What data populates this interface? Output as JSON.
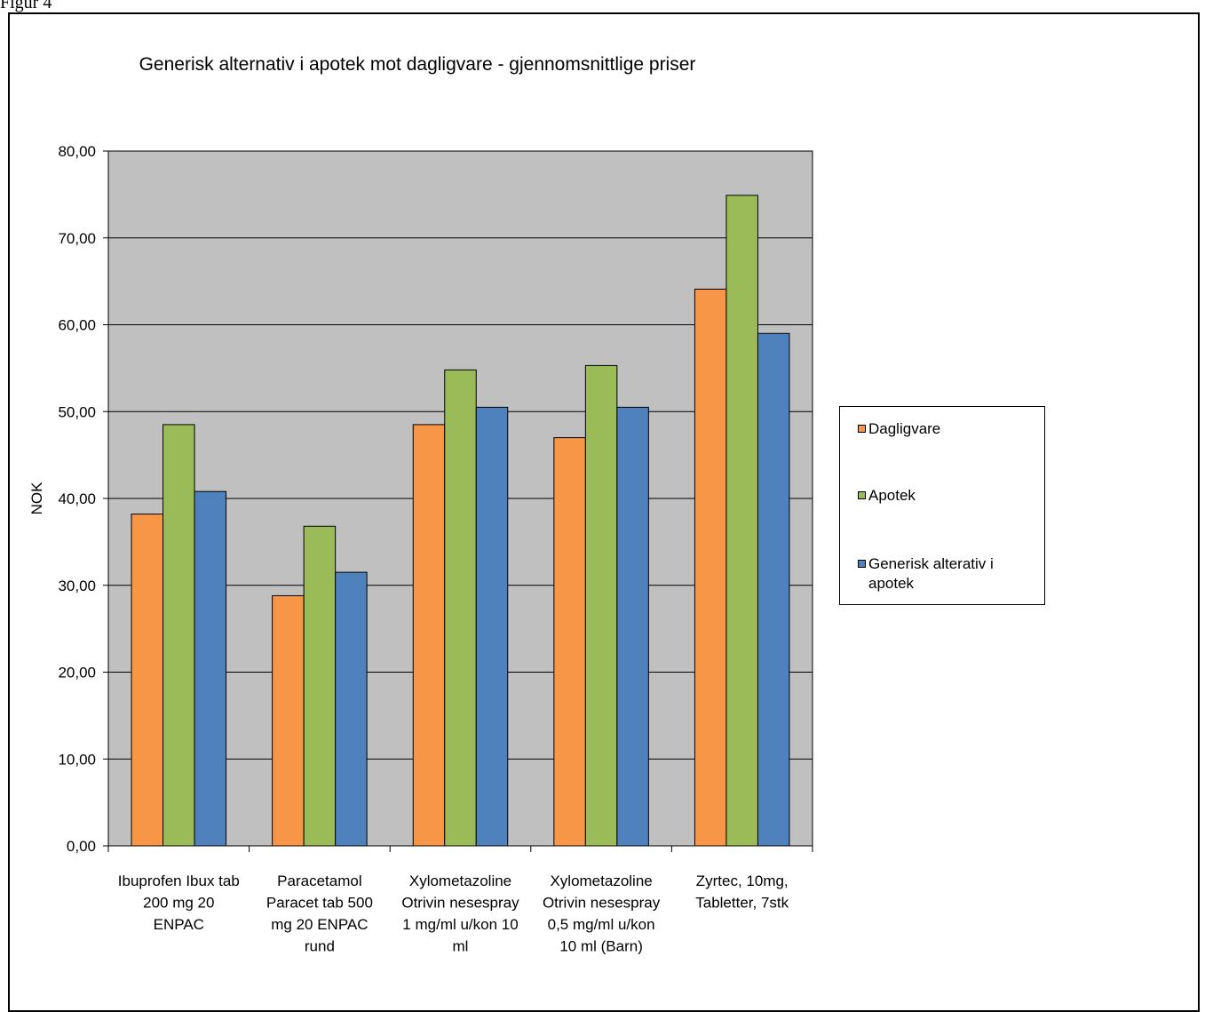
{
  "figure_label": "Figur 4",
  "chart_data": {
    "type": "bar",
    "title": "Generisk alternativ i  apotek mot dagligvare - gjennomsnittlige priser",
    "xlabel": "",
    "ylabel": "NOK",
    "ylim": [
      0,
      80
    ],
    "yticks": [
      "0,00",
      "10,00",
      "20,00",
      "30,00",
      "40,00",
      "50,00",
      "60,00",
      "70,00",
      "80,00"
    ],
    "grid": true,
    "legend_position": "right",
    "categories": [
      [
        "Ibuprofen Ibux tab",
        "200 mg  20",
        "ENPAC"
      ],
      [
        "Paracetamol",
        "Paracet tab 500",
        "mg  20 ENPAC",
        "rund"
      ],
      [
        "Xylometazoline",
        "Otrivin nesespray",
        "1 mg/ml u/kon 10",
        "ml"
      ],
      [
        "Xylometazoline",
        "Otrivin nesespray",
        "0,5 mg/ml u/kon",
        "10 ml (Barn)"
      ],
      [
        "Zyrtec, 10mg,",
        "Tabletter, 7stk"
      ]
    ],
    "series": [
      {
        "name": "Dagligvare",
        "color": "#F79646",
        "values": [
          38.2,
          28.8,
          48.5,
          47.0,
          64.1
        ]
      },
      {
        "name": "Apotek",
        "color": "#9BBB59",
        "values": [
          48.5,
          36.8,
          54.8,
          55.3,
          74.9
        ]
      },
      {
        "name": "Generisk alterativ i apotek",
        "legend_lines": [
          "Generisk alterativ i",
          "apotek"
        ],
        "color": "#4F81BD",
        "values": [
          40.8,
          31.5,
          50.5,
          50.5,
          59.0
        ]
      }
    ],
    "plot_background": "#C0C0C0"
  }
}
